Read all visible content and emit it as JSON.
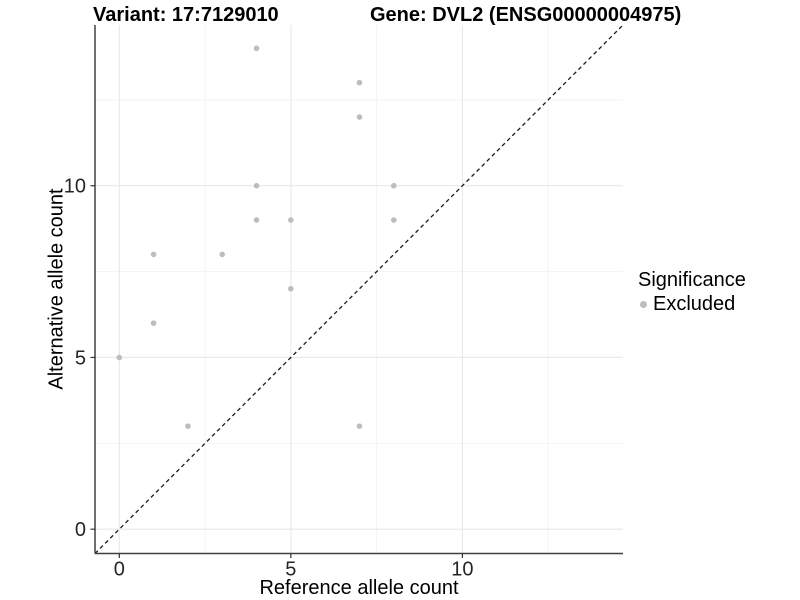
{
  "chart_data": {
    "type": "scatter",
    "title_left": "Variant: 17:7129010",
    "title_right": "Gene: DVL2 (ENSG00000004975)",
    "xlabel": "Reference allele count",
    "ylabel": "Alternative allele count",
    "xlim": [
      -0.708,
      14.68
    ],
    "ylim": [
      -0.708,
      14.68
    ],
    "x_ticks": [
      0,
      5,
      10
    ],
    "y_ticks": [
      0,
      5,
      10
    ],
    "x_minor_breaks": [
      2.5,
      7.5,
      12.5
    ],
    "y_minor_breaks": [
      2.5,
      7.5,
      12.5
    ],
    "grid": true,
    "points": [
      {
        "x": 0,
        "y": 5
      },
      {
        "x": 1,
        "y": 6
      },
      {
        "x": 1,
        "y": 8
      },
      {
        "x": 2,
        "y": 3
      },
      {
        "x": 3,
        "y": 8
      },
      {
        "x": 4,
        "y": 9
      },
      {
        "x": 4,
        "y": 10
      },
      {
        "x": 4,
        "y": 14
      },
      {
        "x": 5,
        "y": 7
      },
      {
        "x": 5,
        "y": 9
      },
      {
        "x": 7,
        "y": 3
      },
      {
        "x": 7,
        "y": 12
      },
      {
        "x": 7,
        "y": 13
      },
      {
        "x": 8,
        "y": 9
      },
      {
        "x": 8,
        "y": 10
      }
    ],
    "identity_line": {
      "slope": 1,
      "intercept": 0,
      "style": "dashed"
    },
    "legend": {
      "title": "Significance",
      "position": "right",
      "entries": [
        {
          "label": "Excluded",
          "color": "#bdbdbd"
        }
      ]
    },
    "colors": {
      "point": "#bdbdbd",
      "grid_major": "#e8e8e8",
      "grid_minor": "#f3f3f3",
      "axis_line": "#404040",
      "tick_mark": "#333333",
      "tick_label": "#262626",
      "identity_line": "#1a1a1a",
      "background": "#ffffff"
    }
  }
}
